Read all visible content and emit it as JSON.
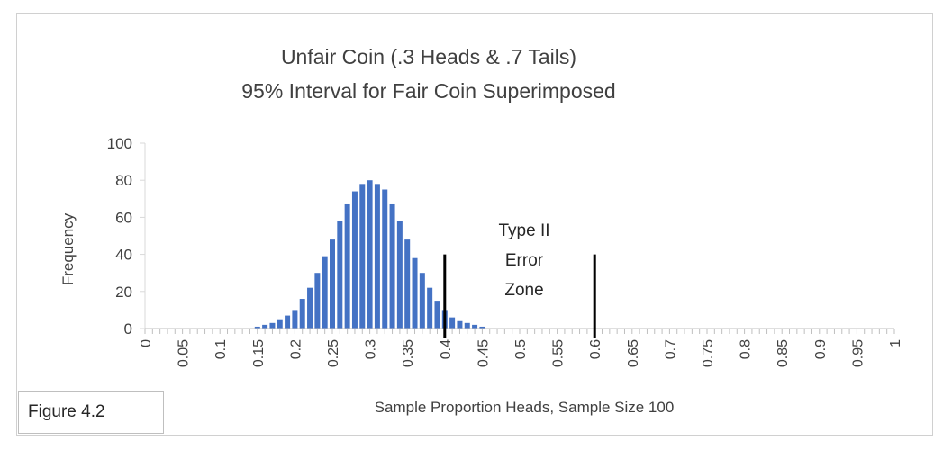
{
  "figure_label": "Figure 4.2",
  "chart_data": {
    "type": "bar",
    "title": [
      "Unfair Coin (.3 Heads & .7 Tails)",
      "95% Interval for Fair Coin Superimposed"
    ],
    "xlabel": "Sample Proportion Heads, Sample Size 100",
    "ylabel": "Frequency",
    "ylim": [
      0,
      100
    ],
    "yticks": [
      "0",
      "20",
      "40",
      "60",
      "80",
      "100"
    ],
    "xticks": [
      "0",
      "0.05",
      "0.1",
      "0.15",
      "0.2",
      "0.25",
      "0.3",
      "0.35",
      "0.4",
      "0.45",
      "0.5",
      "0.55",
      "0.6",
      "0.65",
      "0.7",
      "0.75",
      "0.8",
      "0.85",
      "0.9",
      "0.95",
      "1"
    ],
    "x": [
      0.15,
      0.16,
      0.17,
      0.18,
      0.19,
      0.2,
      0.21,
      0.22,
      0.23,
      0.24,
      0.25,
      0.26,
      0.27,
      0.28,
      0.29,
      0.3,
      0.31,
      0.32,
      0.33,
      0.34,
      0.35,
      0.36,
      0.37,
      0.38,
      0.39,
      0.4,
      0.41,
      0.42,
      0.43,
      0.44,
      0.45
    ],
    "values": [
      1,
      2,
      3,
      5,
      7,
      10,
      16,
      22,
      30,
      39,
      48,
      58,
      67,
      74,
      78,
      80,
      78,
      75,
      67,
      58,
      48,
      38,
      30,
      22,
      15,
      10,
      6,
      4,
      3,
      2,
      1
    ],
    "bar_color": "#4472c4",
    "grid": false,
    "reference_lines": [
      {
        "x": 0.4,
        "y_top": 40,
        "color": "#000000"
      },
      {
        "x": 0.6,
        "y_top": 40,
        "color": "#000000"
      }
    ],
    "annotation": [
      "Type II",
      "Error",
      "Zone"
    ]
  }
}
